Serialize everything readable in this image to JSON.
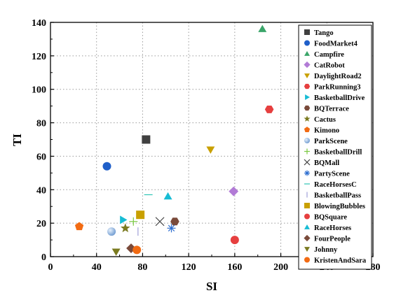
{
  "chart_data": {
    "type": "scatter",
    "xlabel": "SI",
    "ylabel": "TI",
    "xlim": [
      0,
      280
    ],
    "ylim": [
      0,
      140
    ],
    "xticks": [
      0,
      40,
      80,
      120,
      160,
      200,
      240,
      280
    ],
    "yticks": [
      0,
      20,
      40,
      60,
      80,
      100,
      120,
      140
    ],
    "grid": "dotted",
    "legend_position": "right",
    "series": [
      {
        "name": "Tango",
        "x": 83,
        "y": 70,
        "color": "#404040",
        "marker": "square"
      },
      {
        "name": "FoodMarket4",
        "x": 49,
        "y": 54,
        "color": "#1f5fc9",
        "marker": "circle"
      },
      {
        "name": "Campfire",
        "x": 184,
        "y": 136,
        "color": "#3aa569",
        "marker": "triangle-up"
      },
      {
        "name": "CatRobot",
        "x": 159,
        "y": 39,
        "color": "#b27bd6",
        "marker": "diamond"
      },
      {
        "name": "DaylightRoad2",
        "x": 139,
        "y": 64,
        "color": "#c9a000",
        "marker": "triangle-down"
      },
      {
        "name": "ParkRunning3",
        "x": 190,
        "y": 88,
        "color": "#e63f3f",
        "marker": "hexagon"
      },
      {
        "name": "BasketballDrive",
        "x": 63,
        "y": 22,
        "color": "#17bcd4",
        "marker": "triangle-right"
      },
      {
        "name": "BQTerrace",
        "x": 108,
        "y": 21,
        "color": "#7a4a3a",
        "marker": "hexagon"
      },
      {
        "name": "Cactus",
        "x": 65,
        "y": 17,
        "color": "#7a7a1f",
        "marker": "star"
      },
      {
        "name": "Kimono",
        "x": 25,
        "y": 18,
        "color": "#f26b13",
        "marker": "pentagon"
      },
      {
        "name": "ParkScene",
        "x": 53,
        "y": 15,
        "color": "#6f9bd1",
        "marker": "sphere"
      },
      {
        "name": "BasketballDrill",
        "x": 72,
        "y": 21,
        "color": "#7ac943",
        "marker": "plus"
      },
      {
        "name": "BQMall",
        "x": 95,
        "y": 21,
        "color": "#404040",
        "marker": "x"
      },
      {
        "name": "PartyScene",
        "x": 105,
        "y": 17,
        "color": "#2f6fd0",
        "marker": "asterisk"
      },
      {
        "name": "RaceHorsesC",
        "x": 85,
        "y": 37,
        "color": "#2ec4b6",
        "marker": "hline"
      },
      {
        "name": "BasketballPass",
        "x": 76,
        "y": 15,
        "color": "#a0a0d8",
        "marker": "vline"
      },
      {
        "name": "BlowingBubbles",
        "x": 78,
        "y": 25,
        "color": "#c9a000",
        "marker": "square"
      },
      {
        "name": "BQSquare",
        "x": 160,
        "y": 10,
        "color": "#e63f3f",
        "marker": "circle"
      },
      {
        "name": "RaceHorses",
        "x": 102,
        "y": 36,
        "color": "#17bcd4",
        "marker": "triangle-up"
      },
      {
        "name": "FourPeople",
        "x": 70,
        "y": 5,
        "color": "#7a4a3a",
        "marker": "diamond"
      },
      {
        "name": "Johnny",
        "x": 57,
        "y": 3,
        "color": "#7a7a1f",
        "marker": "triangle-down"
      },
      {
        "name": "KristenAndSara",
        "x": 75,
        "y": 4,
        "color": "#f26b13",
        "marker": "circle"
      }
    ]
  }
}
